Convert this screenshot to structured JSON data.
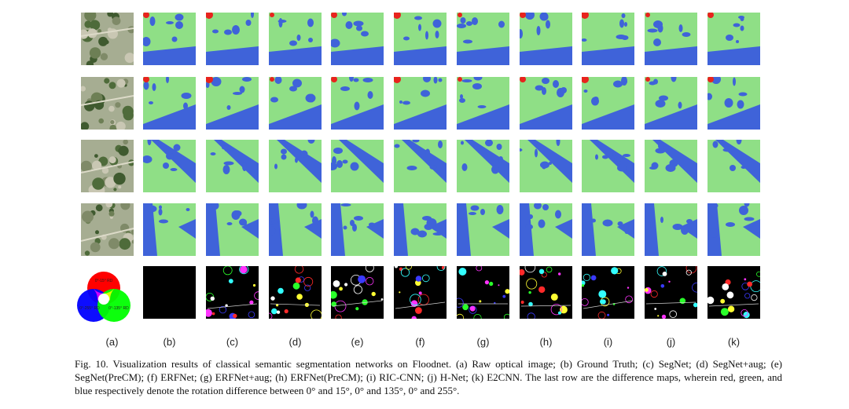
{
  "figure": {
    "columns": [
      "(a)",
      "(b)",
      "(c)",
      "(d)",
      "(e)",
      "(f)",
      "(g)",
      "(h)",
      "(i)",
      "(j)",
      "(k)"
    ],
    "rows": 5,
    "colors": {
      "green": "#8fdf86",
      "blue": "#3f63d9",
      "red": "#e8231d",
      "difference_bg": "#000000"
    },
    "legend": {
      "red_label": "0°-15° RD",
      "blue_label": "0°-255° RD",
      "green_label": "0°-135° RD"
    }
  },
  "caption": {
    "text": "Fig. 10. Visualization results of classical semantic segmentation networks on Floodnet. (a) Raw optical image; (b) Ground Truth; (c) SegNet; (d) SegNet+aug; (e) SegNet(PreCM); (f) ERFNet; (g) ERFNet+aug; (h) ERFNet(PreCM); (i) RIC-CNN; (j) H-Net; (k) E2CNN. The last row are the difference maps, wherein red, green, and blue respectively denote the rotation difference between 0° and 15°, 0° and 135°, 0° and 255°."
  }
}
